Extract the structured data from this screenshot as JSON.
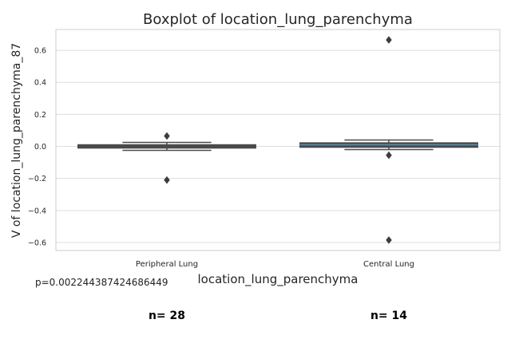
{
  "chart_data": {
    "type": "boxplot",
    "title": "Boxplot of location_lung_parenchyma",
    "xlabel": "location_lung_parenchyma",
    "ylabel": "V of location_lung_parenchyma_87",
    "ylim": [
      -0.65,
      0.73
    ],
    "yticks": [
      -0.6,
      -0.4,
      -0.2,
      0.0,
      0.2,
      0.4,
      0.6
    ],
    "ytick_labels": [
      "−0.6",
      "−0.4",
      "−0.2",
      "0.0",
      "0.2",
      "0.4",
      "0.6"
    ],
    "grid": true,
    "categories": [
      "Peripheral Lung",
      "Central Lung"
    ],
    "boxes": [
      {
        "category": "Peripheral Lung",
        "whisker_low": -0.025,
        "q1": -0.01,
        "median": 0.0,
        "q3": 0.01,
        "whisker_high": 0.025,
        "outliers": [
          0.065,
          -0.21
        ],
        "n": 28
      },
      {
        "category": "Central Lung",
        "whisker_low": -0.02,
        "q1": -0.005,
        "median": 0.01,
        "q3": 0.022,
        "whisker_high": 0.04,
        "outliers": [
          0.665,
          -0.055,
          -0.585
        ],
        "n": 14
      }
    ],
    "box_colors": [
      "#4a4a4a",
      "#4a4a4a"
    ],
    "median_colors": [
      "#4a4a4a",
      "#5b8fb0"
    ]
  },
  "annotations": {
    "p_value": "p=0.002244387424686449",
    "counts": [
      "n= 28",
      "n= 14"
    ]
  }
}
